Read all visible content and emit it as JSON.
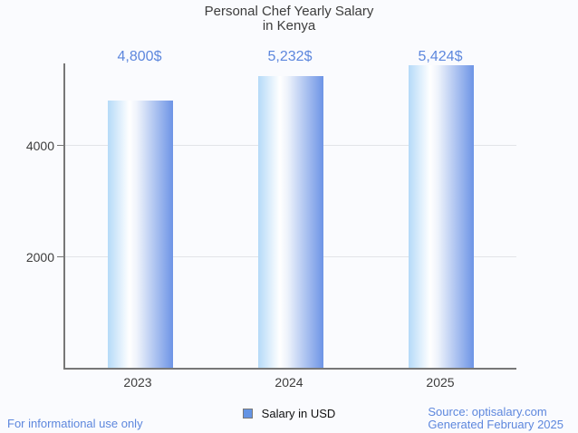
{
  "title": {
    "line1": "Personal Chef Yearly Salary",
    "line2": "in Kenya"
  },
  "chart_data": {
    "type": "bar",
    "categories": [
      "2023",
      "2024",
      "2025"
    ],
    "values": [
      4800,
      5232,
      5424
    ],
    "value_labels": [
      "4,800$",
      "5,232$",
      "5,424$"
    ],
    "series_name": "Salary in USD",
    "title": "Personal Chef Yearly Salary in Kenya",
    "xlabel": "",
    "ylabel": "",
    "yticks": [
      "2000",
      "4000"
    ],
    "ylim": [
      0,
      5500
    ],
    "grid": true,
    "legend_position": "bottom-center",
    "bar_gradient": [
      "#b5daf8",
      "#ffffff",
      "#6d94e6"
    ]
  },
  "footer": {
    "disclaimer": "For informational use only",
    "source": "Source: optisalary.com",
    "generated": "Generated February 2025"
  },
  "colors": {
    "accent_blue": "#5d87dd",
    "axis": "#777777",
    "gridline": "#e2e4e8",
    "background": "#fafbfe",
    "title_text": "#3d3d3d"
  }
}
